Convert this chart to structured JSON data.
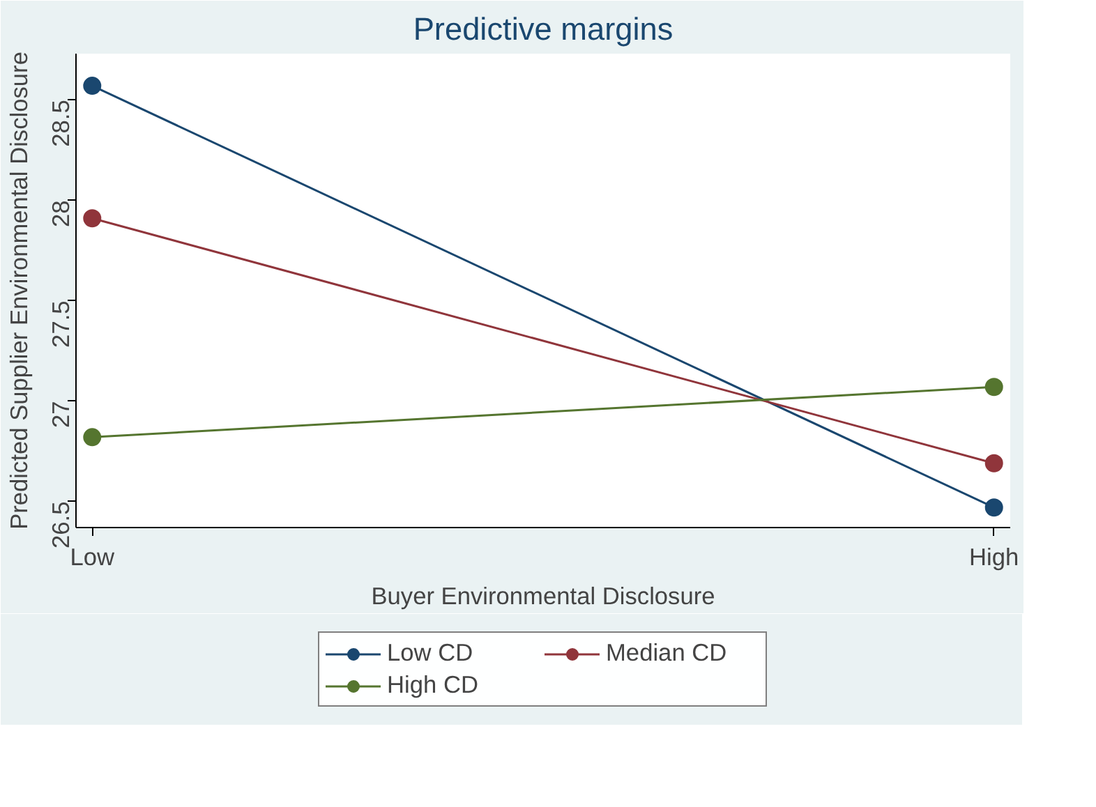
{
  "chart_data": {
    "type": "line",
    "title": "Predictive margins",
    "xlabel": "Buyer Environmental Disclosure",
    "ylabel": "Predicted Supplier Environmental Disclosure",
    "categories": [
      "Low",
      "High"
    ],
    "series": [
      {
        "name": "Low CD",
        "color": "#1a476f",
        "values": [
          28.57,
          26.47
        ]
      },
      {
        "name": "Median CD",
        "color": "#90353b",
        "values": [
          27.91,
          26.69
        ]
      },
      {
        "name": "High CD",
        "color": "#55752f",
        "values": [
          26.82,
          27.07
        ]
      }
    ],
    "ylim": [
      26.37,
      28.73
    ],
    "yticks": [
      26.5,
      27,
      27.5,
      28,
      28.5
    ],
    "grid": false,
    "legend": "bottom",
    "marker": "circle",
    "line_style": "solid"
  }
}
